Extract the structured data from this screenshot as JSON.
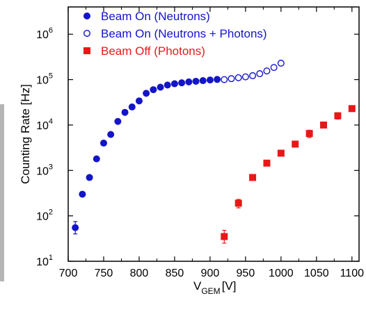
{
  "chart_data": {
    "type": "scatter",
    "xlabel_main": "V",
    "xlabel_sub": "GEM",
    "xlabel_unit": "[V]",
    "ylabel": "Counting Rate [Hz]",
    "xlim": [
      700,
      1110
    ],
    "ylim_log10": [
      1,
      6.6
    ],
    "yscale": "log",
    "legend_position": "top-left",
    "x_ticks": [
      "700",
      "750",
      "800",
      "850",
      "900",
      "950",
      "1000",
      "1050",
      "1100"
    ],
    "y_tick_base": "10",
    "y_ticks_exp": [
      "1",
      "2",
      "3",
      "4",
      "5",
      "6"
    ],
    "series": [
      {
        "name": "Beam On (Neutrons)",
        "color": "#1414c8",
        "marker": "filled-circle",
        "points": [
          {
            "x": 710,
            "y": 55,
            "err": [
              40,
              75
            ]
          },
          {
            "x": 720,
            "y": 300
          },
          {
            "x": 730,
            "y": 700
          },
          {
            "x": 740,
            "y": 1800
          },
          {
            "x": 750,
            "y": 4000
          },
          {
            "x": 760,
            "y": 6200
          },
          {
            "x": 770,
            "y": 12000
          },
          {
            "x": 780,
            "y": 19000
          },
          {
            "x": 790,
            "y": 25000
          },
          {
            "x": 800,
            "y": 34000
          },
          {
            "x": 810,
            "y": 50000
          },
          {
            "x": 820,
            "y": 60000
          },
          {
            "x": 830,
            "y": 68000
          },
          {
            "x": 840,
            "y": 76000
          },
          {
            "x": 850,
            "y": 81000
          },
          {
            "x": 860,
            "y": 85000
          },
          {
            "x": 870,
            "y": 89000
          },
          {
            "x": 880,
            "y": 92000
          },
          {
            "x": 890,
            "y": 95000
          },
          {
            "x": 900,
            "y": 98000
          },
          {
            "x": 910,
            "y": 101000
          }
        ]
      },
      {
        "name": "Beam On (Neutrons + Photons)",
        "color": "#1414c8",
        "marker": "open-circle",
        "points": [
          {
            "x": 920,
            "y": 100000
          },
          {
            "x": 930,
            "y": 105000
          },
          {
            "x": 940,
            "y": 110000
          },
          {
            "x": 950,
            "y": 115000
          },
          {
            "x": 960,
            "y": 122000
          },
          {
            "x": 970,
            "y": 135000
          },
          {
            "x": 980,
            "y": 155000
          },
          {
            "x": 990,
            "y": 185000
          },
          {
            "x": 1000,
            "y": 230000
          }
        ]
      },
      {
        "name": "Beam Off (Photons)",
        "color": "#e81818",
        "marker": "filled-square",
        "points": [
          {
            "x": 920,
            "y": 35,
            "err": [
              25,
              48
            ]
          },
          {
            "x": 940,
            "y": 190,
            "err": [
              150,
              230
            ]
          },
          {
            "x": 960,
            "y": 700
          },
          {
            "x": 980,
            "y": 1450
          },
          {
            "x": 1000,
            "y": 2400
          },
          {
            "x": 1020,
            "y": 3800
          },
          {
            "x": 1040,
            "y": 6500,
            "err": [
              5300,
              7700
            ]
          },
          {
            "x": 1060,
            "y": 10000
          },
          {
            "x": 1080,
            "y": 16000,
            "err": [
              13500,
              18500
            ]
          },
          {
            "x": 1100,
            "y": 23000
          }
        ]
      }
    ]
  }
}
